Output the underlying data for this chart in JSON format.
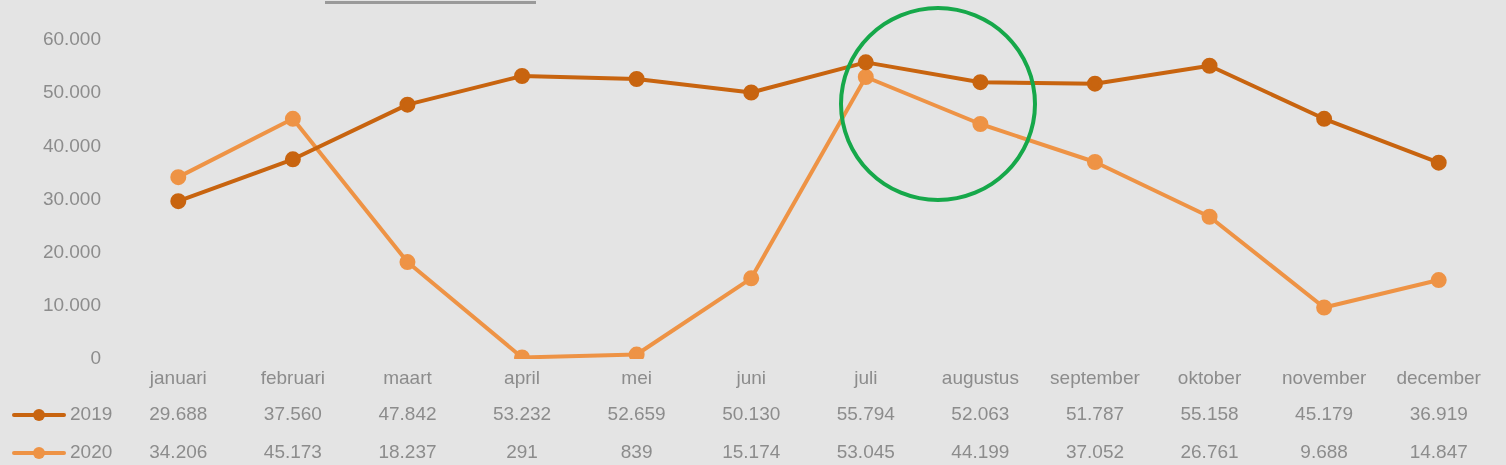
{
  "chart_data": {
    "type": "line",
    "categories": [
      "januari",
      "februari",
      "maart",
      "april",
      "mei",
      "juni",
      "juli",
      "augustus",
      "september",
      "oktober",
      "november",
      "december"
    ],
    "series": [
      {
        "name": "2019",
        "color": "#c8640f",
        "values": [
          29688,
          37560,
          47842,
          53232,
          52659,
          50130,
          55794,
          52063,
          51787,
          55158,
          45179,
          36919
        ],
        "value_labels": [
          "29.688",
          "37.560",
          "47.842",
          "53.232",
          "52.659",
          "50.130",
          "55.794",
          "52.063",
          "51.787",
          "55.158",
          "45.179",
          "36.919"
        ]
      },
      {
        "name": "2020",
        "color": "#ee9345",
        "values": [
          34206,
          45173,
          18237,
          291,
          839,
          15174,
          53045,
          44199,
          37052,
          26761,
          9688,
          14847
        ],
        "value_labels": [
          "34.206",
          "45.173",
          "18.237",
          "291",
          "839",
          "15.174",
          "53.045",
          "44.199",
          "37.052",
          "26.761",
          "9.688",
          "14.847"
        ]
      }
    ],
    "ylim": [
      0,
      60000
    ],
    "yticks": [
      0,
      {
        "value": 10000,
        "label": "10.000"
      },
      {
        "value": 20000,
        "label": "20.000"
      },
      {
        "value": 30000,
        "label": "30.000"
      },
      {
        "value": 40000,
        "label": "40.000"
      },
      {
        "value": 50000,
        "label": "50.000"
      },
      {
        "value": 60000,
        "label": "60.000"
      }
    ],
    "grid": false,
    "legend": "bottom",
    "marker": "circle",
    "line_style": "solid"
  }
}
